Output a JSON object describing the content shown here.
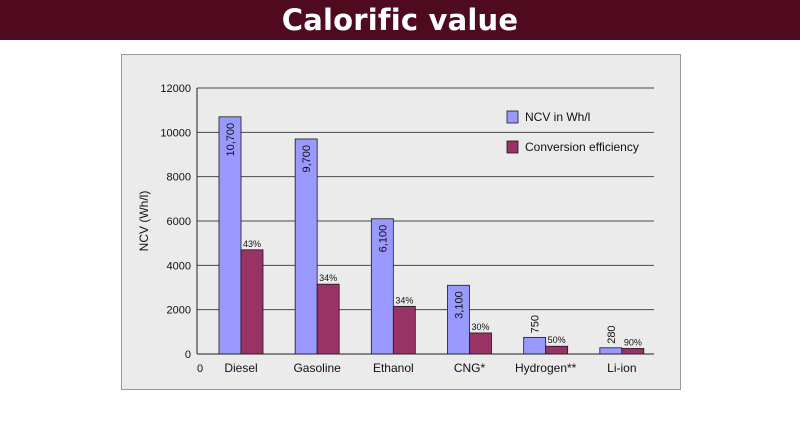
{
  "page": {
    "title": "Calorific value"
  },
  "chart_data": {
    "type": "bar",
    "categories": [
      "Diesel",
      "Gasoline",
      "Ethanol",
      "CNG*",
      "Hydrogen**",
      "Li-ion"
    ],
    "series": [
      {
        "name": "NCV in Wh/l",
        "values": [
          10700,
          9700,
          6100,
          3100,
          750,
          280
        ],
        "labels": [
          "10,700",
          "9,700",
          "6,100",
          "3,100",
          "750",
          "280"
        ],
        "color": "#9999ff"
      },
      {
        "name": "Conversion efficiency",
        "values": [
          4700,
          3150,
          2150,
          950,
          350,
          250
        ],
        "labels": [
          "43%",
          "34%",
          "34%",
          "30%",
          "50%",
          "90%"
        ],
        "color": "#993366"
      }
    ],
    "yticks": [
      "0",
      "2000",
      "4000",
      "6000",
      "8000",
      "10000",
      "12000"
    ],
    "x_origin_label": "0",
    "ylabel": "NCV (Wh/l)",
    "xlabel": "",
    "ylim": [
      0,
      12000
    ],
    "grid": true,
    "legend_position": "top-right"
  }
}
